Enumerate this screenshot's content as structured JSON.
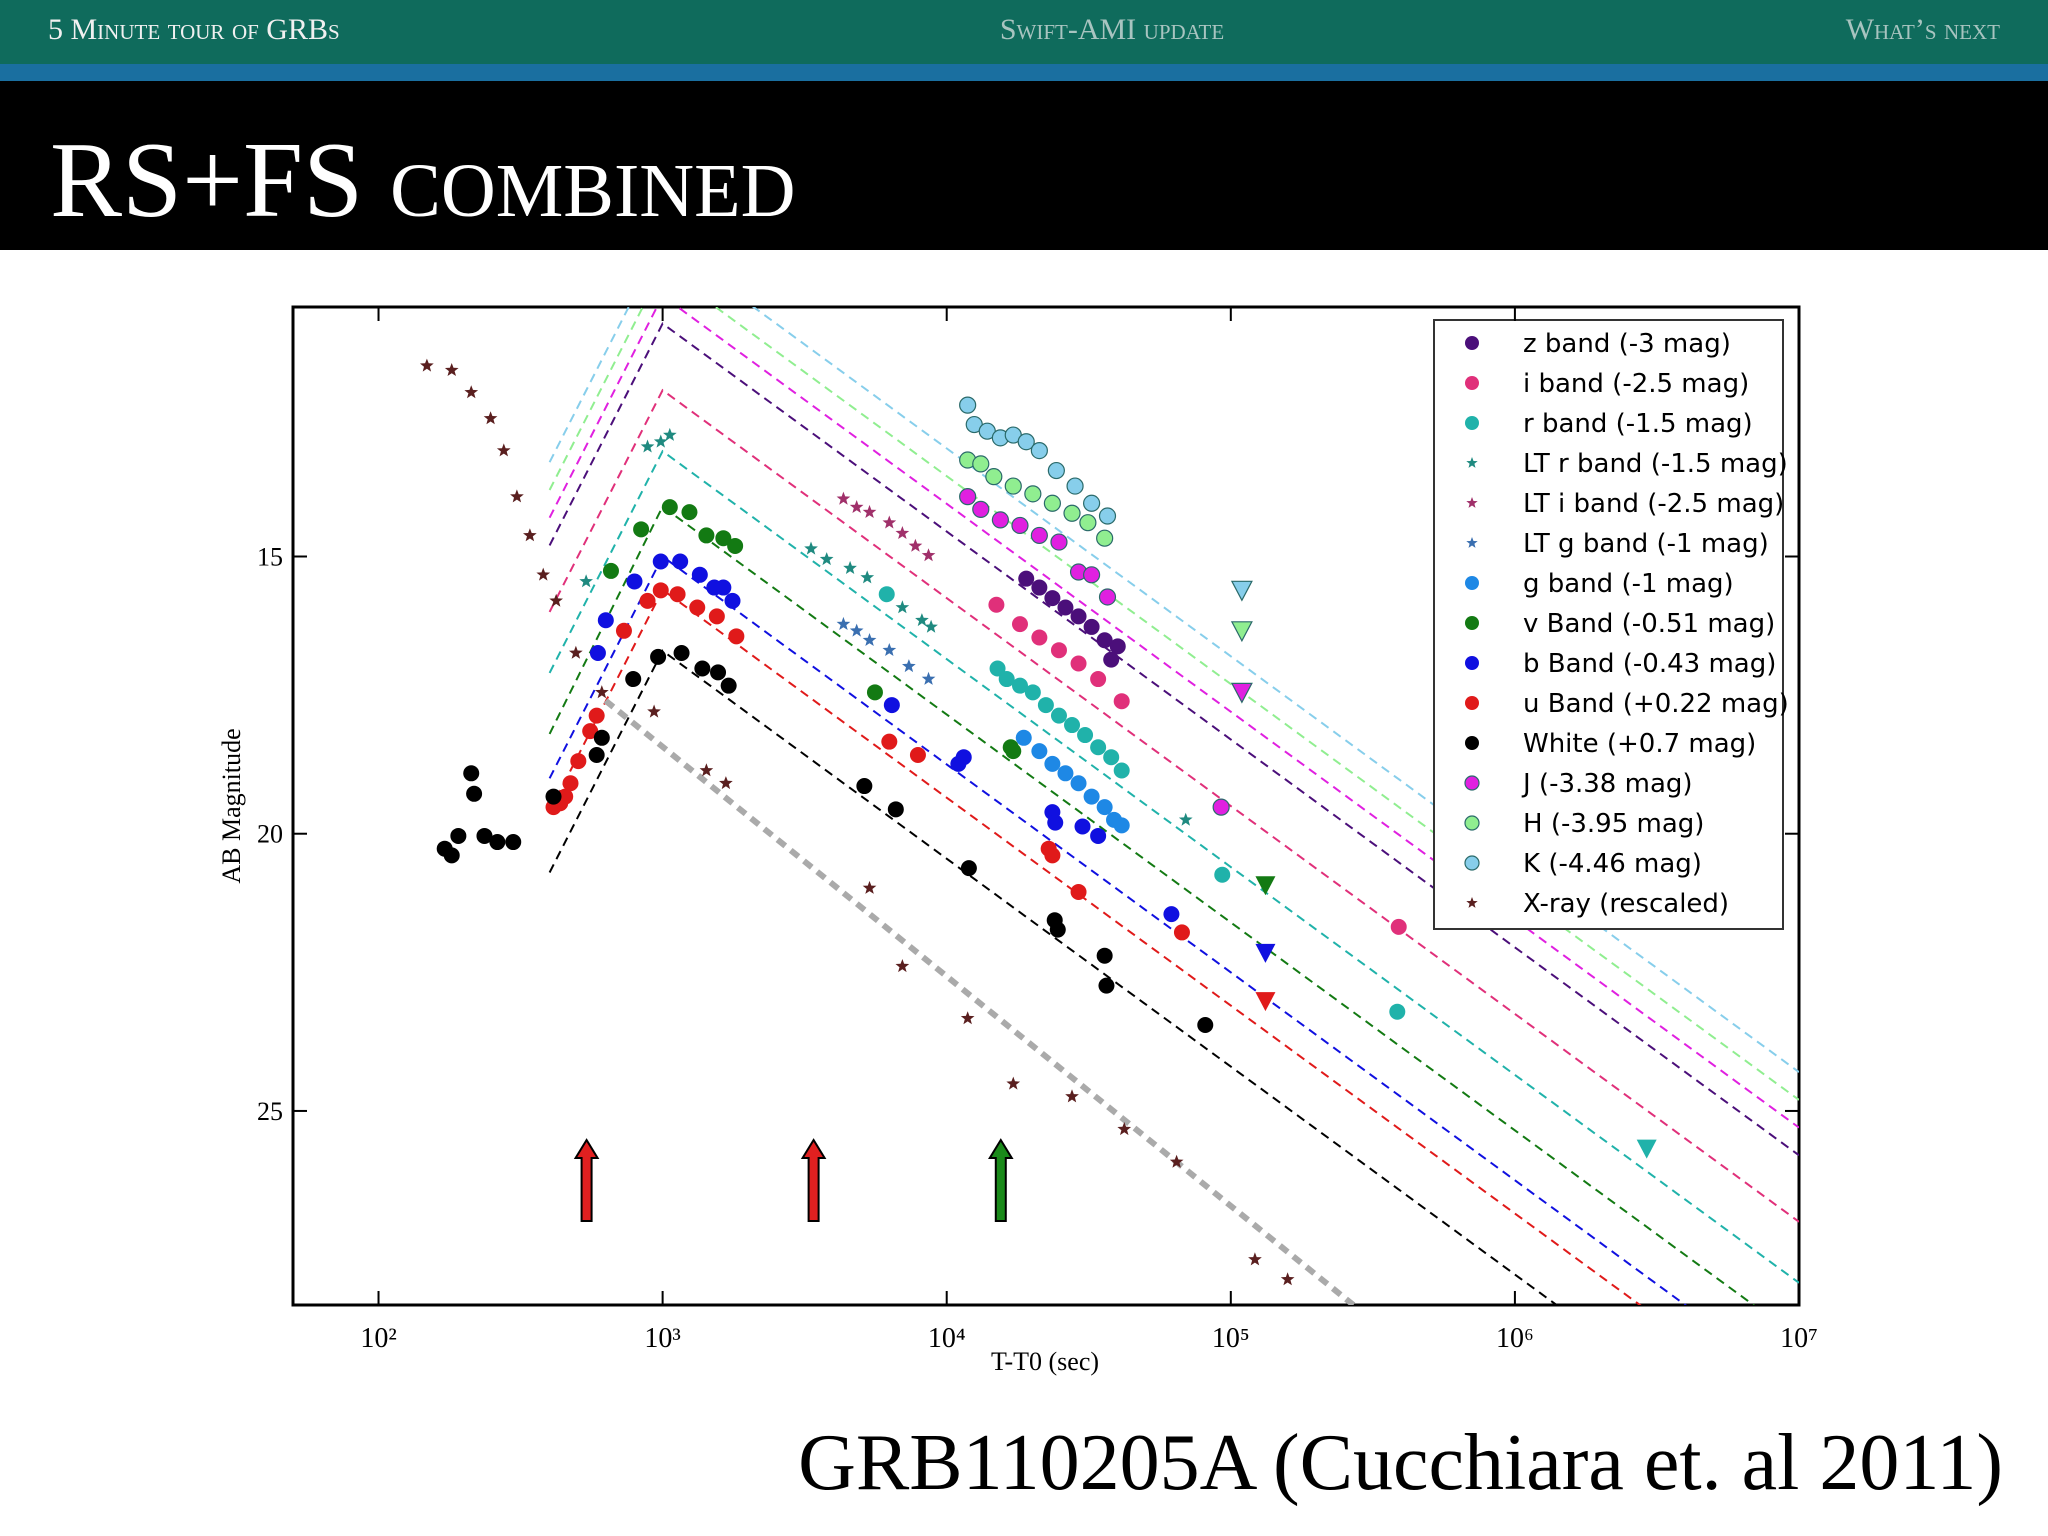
{
  "nav": {
    "left": "5 Minute tour of GRBs",
    "center": "Swift-AMI update",
    "right": "What’s next"
  },
  "slide_title": "RS+FS combined",
  "caption": "GRB110205A (Cucchiara et. al 2011)",
  "chart_data": {
    "type": "scatter",
    "x_label": "T-T0 (sec)",
    "y_label": "AB Magnitude",
    "x_scale": "log",
    "y_inverted": true,
    "legend": "upper right",
    "xlim": [
      50,
      10000000
    ],
    "xticks": [
      {
        "value": 100,
        "label": "10²"
      },
      {
        "value": 1000,
        "label": "10³"
      },
      {
        "value": 10000,
        "label": "10⁴"
      },
      {
        "value": 100000,
        "label": "10⁵"
      },
      {
        "value": 1000000,
        "label": "10⁶"
      },
      {
        "value": 10000000,
        "label": "10⁷"
      }
    ],
    "ylim": [
      10.5,
      28.5
    ],
    "yticks": [
      15,
      20,
      25
    ],
    "series": [
      {
        "name": "z band (-3 mag)",
        "color": "#4b0f7a",
        "marker": "o",
        "x": [
          19050,
          21190,
          23550,
          26180,
          29110,
          32360,
          35970,
          40000,
          37930
        ],
        "values": [
          15.4,
          15.56,
          15.75,
          15.92,
          16.08,
          16.27,
          16.51,
          16.62,
          16.86
        ]
      },
      {
        "name": "i band (-2.5 mag)",
        "color": "#e0307a",
        "marker": "o",
        "x": [
          14960,
          18110,
          21190,
          24840,
          29110,
          34120,
          41300,
          390000
        ],
        "values": [
          15.87,
          16.22,
          16.46,
          16.69,
          16.93,
          17.21,
          17.61,
          21.68
        ]
      },
      {
        "name": "r band (-1.5 mag)",
        "color": "#20b2aa",
        "marker": "o",
        "x": [
          6150,
          15100,
          16260,
          18110,
          20100,
          22340,
          24840,
          27610,
          30690,
          34120,
          37930,
          41300,
          93300,
          385500
        ],
        "values": [
          15.68,
          17.02,
          17.21,
          17.33,
          17.45,
          17.68,
          17.87,
          18.04,
          18.22,
          18.44,
          18.62,
          18.86,
          20.74,
          23.21
        ],
        "limits_x": [
          2910000
        ],
        "limits_values": [
          25.68
        ]
      },
      {
        "name": "LT r band (-1.5 mag)",
        "color": "#1f8a80",
        "marker": "*",
        "x": [
          538,
          885,
          985,
          1060,
          3330,
          3780,
          4570,
          5250,
          6980,
          8180,
          8810,
          69400
        ],
        "values": [
          15.45,
          13.02,
          12.93,
          12.81,
          14.86,
          15.05,
          15.21,
          15.38,
          15.92,
          16.15,
          16.27,
          19.75
        ]
      },
      {
        "name": "LT i band (-2.5 mag)",
        "color": "#a0306a",
        "marker": "*",
        "x": [
          4330,
          4820,
          5350,
          6280,
          6980,
          7760,
          8630
        ],
        "values": [
          13.96,
          14.11,
          14.2,
          14.39,
          14.58,
          14.81,
          14.98
        ]
      },
      {
        "name": "LT g band (-1 mag)",
        "color": "#3a6fb0",
        "marker": "*",
        "x": [
          4330,
          4820,
          5350,
          6280,
          7360,
          8630
        ],
        "values": [
          16.22,
          16.34,
          16.51,
          16.69,
          16.98,
          17.21
        ]
      },
      {
        "name": "g band (-1 mag)",
        "color": "#1e88e5",
        "marker": "o",
        "x": [
          18670,
          21190,
          23550,
          26180,
          29110,
          32360,
          35970,
          38810,
          41300
        ],
        "values": [
          18.27,
          18.51,
          18.74,
          18.91,
          19.09,
          19.33,
          19.52,
          19.75,
          19.85
        ]
      },
      {
        "name": "v Band (-0.51 mag)",
        "color": "#137a13",
        "marker": "o",
        "x": [
          658,
          840,
          1060,
          1243,
          1426,
          1636,
          1800,
          5590,
          16800,
          17150
        ],
        "values": [
          15.26,
          14.51,
          14.11,
          14.2,
          14.62,
          14.67,
          14.81,
          17.45,
          18.44,
          18.51
        ],
        "limits_x": [
          132400
        ],
        "limits_values": [
          20.93
        ]
      },
      {
        "name": "b Band (-0.43 mag)",
        "color": "#1010e0",
        "marker": "o",
        "x": [
          592,
          631,
          796,
          985,
          1153,
          1352,
          1520,
          1636,
          1762,
          6410,
          10990,
          11480,
          23550,
          24100,
          30060,
          34120,
          61800
        ],
        "values": [
          16.74,
          16.15,
          15.45,
          15.09,
          15.09,
          15.33,
          15.56,
          15.56,
          15.8,
          17.68,
          18.74,
          18.62,
          19.61,
          19.8,
          19.87,
          20.04,
          21.45
        ],
        "limits_x": [
          132400
        ],
        "limits_values": [
          22.15
        ]
      },
      {
        "name": "u Band (+0.22 mag)",
        "color": "#e01a1a",
        "marker": "o",
        "x": [
          413,
          436,
          454,
          474,
          505,
          556,
          586,
          731,
          885,
          985,
          1129,
          1324,
          1552,
          1818,
          6280,
          7920,
          22850,
          23550,
          29110,
          67300
        ],
        "values": [
          19.52,
          19.45,
          19.33,
          19.09,
          18.69,
          18.15,
          17.87,
          16.34,
          15.8,
          15.61,
          15.68,
          15.92,
          16.08,
          16.44,
          18.34,
          18.58,
          20.27,
          20.39,
          21.05,
          21.78
        ],
        "limits_x": [
          132400
        ],
        "limits_values": [
          23.02
        ]
      },
      {
        "name": "White (+0.7 mag)",
        "color": "#000000",
        "marker": "o",
        "x": [
          171,
          181,
          191,
          212,
          217,
          236,
          262,
          298,
          413,
          586,
          611,
          788,
          964,
          1166,
          1380,
          1567,
          1708,
          5130,
          6620,
          11970,
          24000,
          24600,
          35970,
          36500,
          81300
        ],
        "values": [
          20.27,
          20.39,
          20.04,
          18.91,
          19.28,
          20.04,
          20.15,
          20.15,
          19.33,
          18.58,
          18.27,
          17.21,
          16.81,
          16.74,
          17.02,
          17.09,
          17.33,
          19.14,
          19.56,
          20.62,
          21.56,
          21.73,
          22.2,
          22.74,
          23.45
        ]
      },
      {
        "name": "J (-3.38 mag)",
        "color": "#e020e0",
        "marker": "o",
        "x": [
          11850,
          13180,
          15450,
          18110,
          21190,
          24840,
          29110,
          32360,
          36810,
          92470
        ],
        "values": [
          13.92,
          14.15,
          14.34,
          14.44,
          14.62,
          14.74,
          15.28,
          15.33,
          15.73,
          19.52
        ],
        "limits_x": [
          109400
        ],
        "limits_values": [
          17.45
        ]
      },
      {
        "name": "H (-3.95 mag)",
        "color": "#90ee90",
        "marker": "o",
        "x": [
          11850,
          13180,
          14650,
          17150,
          20100,
          23550,
          27610,
          31400,
          35970
        ],
        "values": [
          13.26,
          13.33,
          13.56,
          13.73,
          13.87,
          14.04,
          14.22,
          14.39,
          14.67
        ],
        "limits_x": [
          109400
        ],
        "limits_values": [
          16.34
        ]
      },
      {
        "name": "K (-4.46 mag)",
        "color": "#87ceeb",
        "marker": "o",
        "x": [
          11850,
          12500,
          13890,
          15450,
          17150,
          19050,
          21190,
          24320,
          28300,
          32360,
          36810
        ],
        "values": [
          12.27,
          12.62,
          12.74,
          12.86,
          12.81,
          12.93,
          13.09,
          13.45,
          13.73,
          14.04,
          14.27
        ],
        "limits_x": [
          109400
        ],
        "limits_values": [
          15.61
        ]
      },
      {
        "name": "X-ray (rescaled)",
        "color": "#5a1f1f",
        "marker": "*",
        "x": [
          148,
          181,
          212,
          248,
          276,
          307,
          341,
          380,
          422,
          495,
          611,
          933,
          1426,
          1670,
          5350,
          6980,
          11850,
          17150,
          27610,
          42170,
          64450,
          121600,
          158500
        ],
        "values": [
          11.56,
          11.64,
          12.04,
          12.51,
          13.09,
          13.92,
          14.62,
          15.33,
          15.8,
          16.74,
          17.45,
          17.8,
          18.86,
          19.09,
          20.98,
          22.39,
          23.33,
          24.51,
          24.74,
          25.33,
          25.92,
          27.68,
          28.04
        ]
      }
    ],
    "models": [
      {
        "color": "#000000",
        "x": [
          400,
          1000,
          10000000
        ],
        "values": [
          20.7,
          16.7,
          31.7
        ]
      },
      {
        "color": "#e01a1a",
        "x": [
          400,
          1000,
          10000000
        ],
        "values": [
          19.6,
          15.6,
          30.6
        ]
      },
      {
        "color": "#1010e0",
        "x": [
          400,
          1000,
          10000000
        ],
        "values": [
          19.0,
          15.0,
          30.0
        ]
      },
      {
        "color": "#137a13",
        "x": [
          400,
          1000,
          10000000
        ],
        "values": [
          18.2,
          14.1,
          29.1
        ]
      },
      {
        "color": "#20b2aa",
        "x": [
          400,
          1000,
          10000000
        ],
        "values": [
          17.1,
          13.1,
          28.1
        ]
      },
      {
        "color": "#e0307a",
        "x": [
          400,
          1000,
          10000000
        ],
        "values": [
          16.0,
          12.0,
          27.0
        ]
      },
      {
        "color": "#4b0f7a",
        "x": [
          400,
          1000,
          10000000
        ],
        "values": [
          14.8,
          10.8,
          25.8
        ]
      },
      {
        "color": "#e020e0",
        "x": [
          400,
          1000,
          10000000
        ],
        "values": [
          14.3,
          10.3,
          25.3
        ]
      },
      {
        "color": "#90ee90",
        "x": [
          400,
          1000,
          10000000
        ],
        "values": [
          13.8,
          9.8,
          24.8
        ]
      },
      {
        "color": "#87ceeb",
        "x": [
          400,
          1000,
          10000000
        ],
        "values": [
          13.3,
          9.3,
          24.3
        ]
      },
      {
        "color": "#aaaaaa",
        "x": [
          630,
          270000
        ],
        "values": [
          17.6,
          28.5
        ],
        "width": 6
      }
    ],
    "arrows": [
      {
        "x": 540,
        "color": "#e02020"
      },
      {
        "x": 3400,
        "color": "#e02020"
      },
      {
        "x": 15500,
        "color": "#1a8a1a"
      }
    ]
  }
}
